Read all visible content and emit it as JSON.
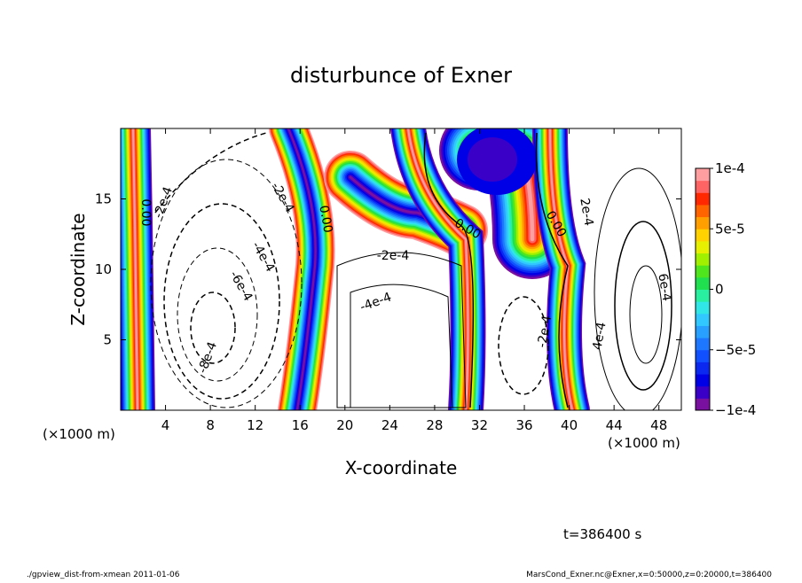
{
  "chart_data": {
    "type": "contour",
    "title": "disturbunce of Exner",
    "xlabel": "X-coordinate",
    "ylabel": "Z-coordinate",
    "axis_unit": "(×1000 m)",
    "xlim": [
      0,
      50
    ],
    "ylim": [
      0,
      20
    ],
    "xticks": [
      4,
      8,
      12,
      16,
      20,
      24,
      28,
      32,
      36,
      40,
      44,
      48
    ],
    "yticks": [
      5,
      10,
      15
    ],
    "colorbar": {
      "lim": [
        -0.0001,
        0.0001
      ],
      "ticks": [
        {
          "value": -0.0001,
          "label": "−1e-4"
        },
        {
          "value": -5e-05,
          "label": "−5e-5"
        },
        0,
        {
          "value": 5e-05,
          "label": "5e-5"
        },
        {
          "value": 0.0001,
          "label": "1e-4"
        }
      ],
      "colors": [
        "#7a10a0",
        "#3a00c8",
        "#0000e6",
        "#0a28f0",
        "#1050ff",
        "#1e78ff",
        "#28a0ff",
        "#30c8ff",
        "#30e6e6",
        "#28f0a0",
        "#20e050",
        "#50e61e",
        "#a0f000",
        "#e6f000",
        "#ffd200",
        "#ffa000",
        "#ff6400",
        "#ff2800",
        "#ff6464",
        "#ff9ea0"
      ]
    },
    "contour_labels": [
      "0.00",
      "-2e-4",
      "-2e-4",
      "-4e-4",
      "-6e-4",
      "-8e-4",
      "0.00",
      "-2e-4",
      "-4e-4",
      "0.00",
      "0.00",
      "2e-4",
      "-2e-4",
      "6e-4",
      "4e-4"
    ],
    "time_label": "t=386400 s",
    "footer_left": "./gpview_dist-from-xmean   2011-01-06",
    "footer_right": "MarsCond_Exner.nc@Exner,x=0:50000,z=0:20000,t=386400"
  }
}
